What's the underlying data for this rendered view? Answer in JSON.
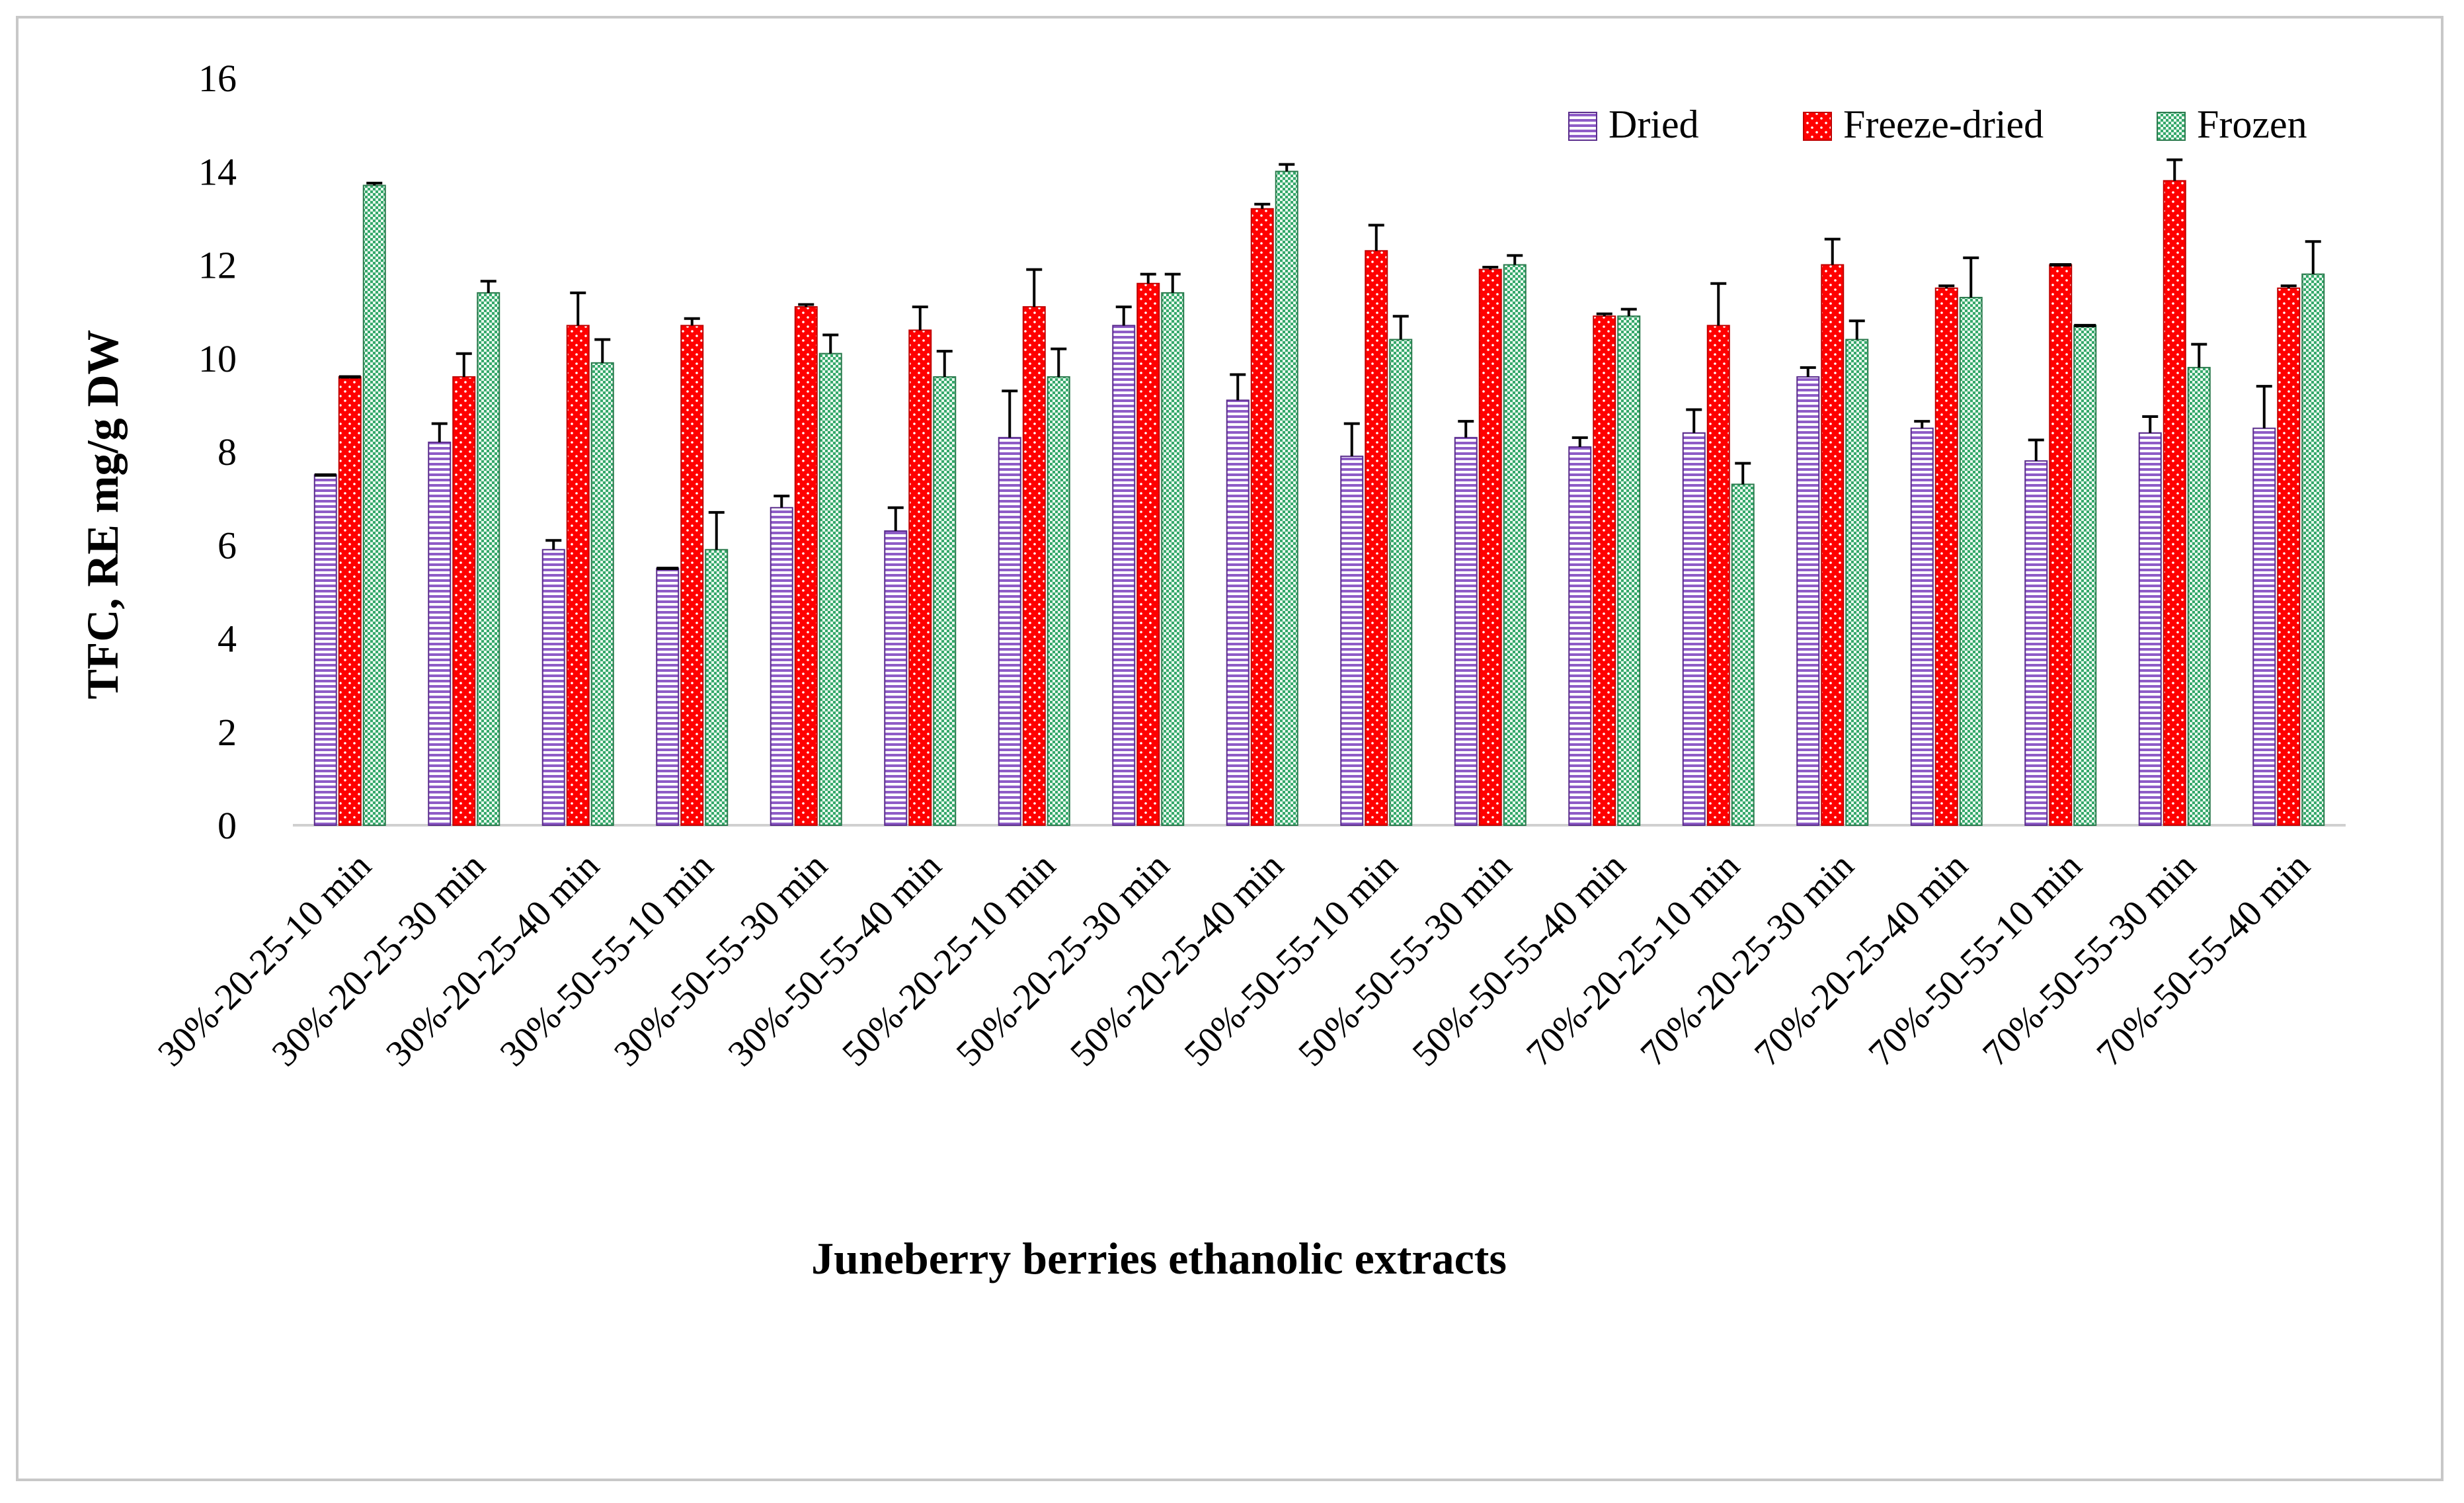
{
  "chart_data": {
    "type": "bar",
    "title": "",
    "xlabel": "Juneberry berries ethanolic extracts",
    "ylabel": "TFC, RE mg/g DW",
    "ylim": [
      0,
      16
    ],
    "yticks": [
      0,
      2,
      4,
      6,
      8,
      10,
      12,
      14,
      16
    ],
    "grid": false,
    "legend_position": "top-right",
    "categories": [
      "30%-20-25-10 min",
      "30%-20-25-30 min",
      "30%-20-25-40 min",
      "30%-50-55-10 min",
      "30%-50-55-30 min",
      "30%-50-55-40 min",
      "50%-20-25-10 min",
      "50%-20-25-30 min",
      "50%-20-25-40 min",
      "50%-50-55-10 min",
      "50%-50-55-30 min",
      "50%-50-55-40 min",
      "70%-20-25-10 min",
      "70%-20-25-30 min",
      "70%-20-25-40 min",
      "70%-50-55-10 min",
      "70%-50-55-30 min",
      "70%-50-55-40 min"
    ],
    "series": [
      {
        "name": "Dried",
        "color": "#7030a0",
        "fill": "#e4dcf0",
        "values": [
          7.5,
          8.2,
          5.9,
          5.5,
          6.8,
          6.3,
          8.3,
          10.7,
          9.1,
          7.9,
          8.3,
          8.1,
          8.4,
          9.6,
          8.5,
          7.8,
          8.4,
          8.5
        ],
        "errors": [
          0.0,
          0.4,
          0.2,
          0.0,
          0.25,
          0.5,
          1.0,
          0.4,
          0.55,
          0.7,
          0.35,
          0.2,
          0.5,
          0.2,
          0.15,
          0.45,
          0.35,
          0.9
        ]
      },
      {
        "name": "Freeze-dried",
        "color": "#ff0000",
        "fill": "#ff0000",
        "values": [
          9.6,
          9.6,
          10.7,
          10.7,
          11.1,
          10.6,
          11.1,
          11.6,
          13.2,
          12.3,
          11.9,
          10.9,
          10.7,
          12.0,
          11.5,
          12.0,
          13.8,
          11.5
        ],
        "errors": [
          0.0,
          0.5,
          0.7,
          0.15,
          0.05,
          0.5,
          0.8,
          0.2,
          0.1,
          0.55,
          0.05,
          0.05,
          0.9,
          0.55,
          0.05,
          0.0,
          0.45,
          0.05
        ]
      },
      {
        "name": "Frozen",
        "color": "#3aa56a",
        "fill": "#cfeedc",
        "values": [
          13.7,
          11.4,
          9.9,
          5.9,
          10.1,
          9.6,
          9.6,
          11.4,
          14.0,
          10.4,
          12.0,
          10.9,
          7.3,
          10.4,
          11.3,
          10.7,
          9.8,
          11.8
        ],
        "errors": [
          0.05,
          0.25,
          0.5,
          0.8,
          0.4,
          0.55,
          0.6,
          0.4,
          0.15,
          0.5,
          0.2,
          0.15,
          0.45,
          0.4,
          0.85,
          0.0,
          0.5,
          0.7
        ]
      }
    ]
  }
}
